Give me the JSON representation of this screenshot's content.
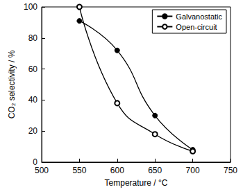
{
  "chart_data": {
    "type": "line",
    "x_label": "Temperature / °C",
    "y_label": "CO₂ selectivity / %",
    "xlim": [
      500,
      750
    ],
    "xticks": [
      500,
      550,
      600,
      650,
      700,
      750
    ],
    "ylim": [
      0,
      100
    ],
    "yticks": [
      0,
      20,
      40,
      60,
      80,
      100
    ],
    "grid": false,
    "legend": "top-right",
    "line_style": "smooth",
    "series": [
      {
        "name": "Galvanostatic",
        "color": "#000000",
        "marker": "circle",
        "x": [
          550,
          600,
          650,
          700
        ],
        "values": [
          91,
          72,
          30,
          8
        ]
      },
      {
        "name": "Open-circuit",
        "color": "#000000",
        "marker": "open_circle",
        "x": [
          550,
          600,
          650,
          700
        ],
        "values": [
          100,
          38,
          18,
          7
        ]
      }
    ]
  }
}
